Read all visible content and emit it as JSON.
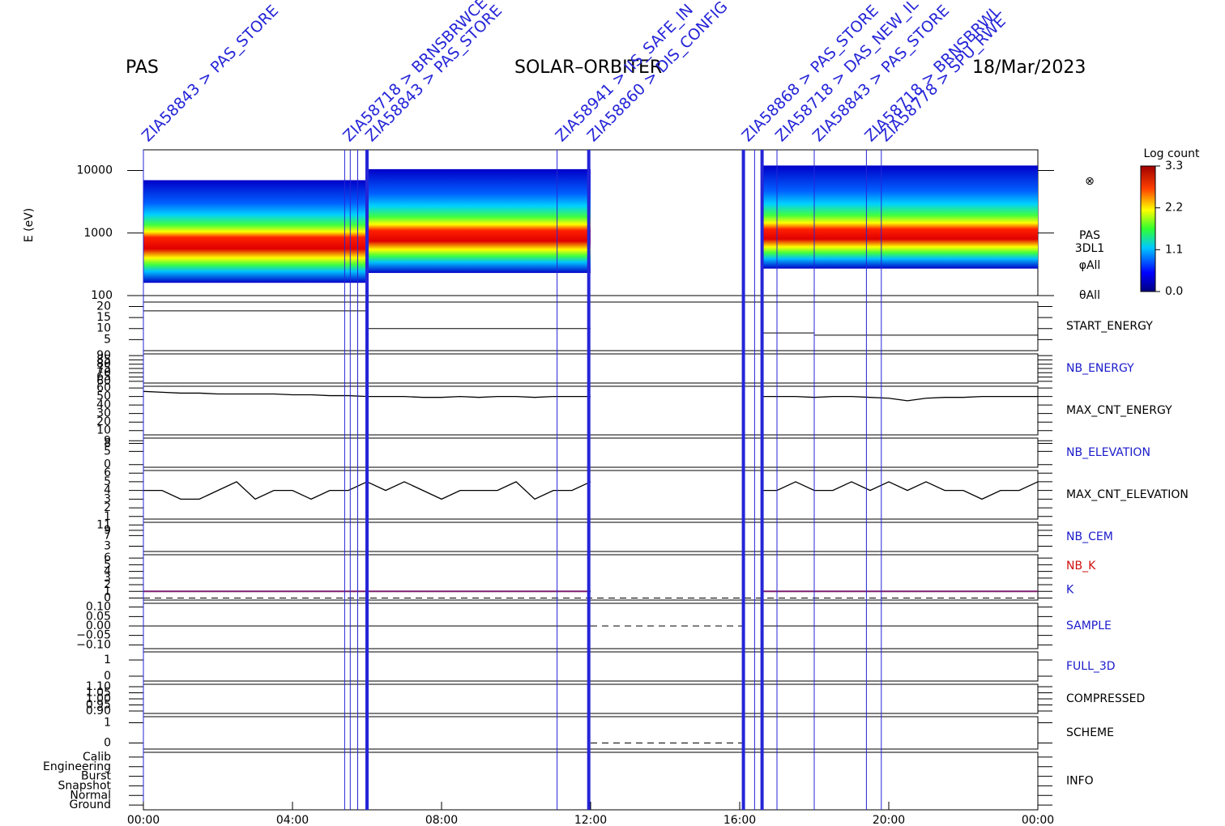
{
  "chart_data": {
    "type": "stacked-panels",
    "title_left": "PAS",
    "title_center": "SOLAR–ORBITER",
    "title_right": "18/Mar/2023",
    "xlim": [
      0,
      24
    ],
    "xticks": [
      {
        "value": 0,
        "label": "00:00"
      },
      {
        "value": 4,
        "label": "04:00"
      },
      {
        "value": 8,
        "label": "08:00"
      },
      {
        "value": 12,
        "label": "12:00"
      },
      {
        "value": 16,
        "label": "16:00"
      },
      {
        "value": 20,
        "label": "20:00"
      },
      {
        "value": 24,
        "label": "00:00"
      }
    ],
    "events": [
      {
        "x": 0.0,
        "label": "ZIA58843 > PAS_STORE",
        "thick": false
      },
      {
        "x": 5.4,
        "label": "ZIA58718 > BRNSBRWCE",
        "thick": false
      },
      {
        "x": 5.55,
        "thick": false
      },
      {
        "x": 5.75,
        "thick": false
      },
      {
        "x": 6.0,
        "label": "ZIA58843 > PAS_STORE",
        "thick": true
      },
      {
        "x": 11.1,
        "label": "ZIA58941 > IIS_SAFE_IN",
        "thick": false
      },
      {
        "x": 11.95,
        "label": "ZIA58860 > DIS_CONFIG",
        "thick": true
      },
      {
        "x": 16.1,
        "label": "ZIA58868 > PAS_STORE",
        "thick": true
      },
      {
        "x": 16.4,
        "thick": false
      },
      {
        "x": 16.6,
        "thick": true
      },
      {
        "x": 17.0,
        "label": "ZIA58718 > DAS_NEW_IL",
        "thick": false
      },
      {
        "x": 18.0,
        "label": "ZIA58843 > PAS_STORE",
        "thick": false
      },
      {
        "x": 19.4,
        "label": "ZIA58718 > BRNSBRWL",
        "thick": false
      },
      {
        "x": 19.8,
        "label": "ZIA58778 > SPU_RWE",
        "thick": false
      }
    ],
    "spectrogram": {
      "ylabel": "E (eV)",
      "log_y": true,
      "ylim": [
        100,
        21400
      ],
      "yticks": [
        100,
        1000,
        10000
      ],
      "segments": [
        {
          "x": [
            0,
            6
          ],
          "emin": 160,
          "emax": 7000,
          "epeak": 850
        },
        {
          "x": [
            6,
            12
          ],
          "emin": 230,
          "emax": 10500,
          "epeak": 1100
        },
        {
          "x": [
            16.6,
            24
          ],
          "emin": 270,
          "emax": 12000,
          "epeak": 1150
        }
      ],
      "right_labels": [
        "⊗",
        "PAS",
        "3DL1",
        "φAll",
        "θAll"
      ]
    },
    "colorbar": {
      "title": "Log count",
      "ylim": [
        0,
        3.3
      ],
      "yticks": [
        {
          "value": 0,
          "label": "0.0"
        },
        {
          "value": 1.1,
          "label": "1.1"
        },
        {
          "value": 2.2,
          "label": "2.2"
        },
        {
          "value": 3.3,
          "label": "3.3"
        }
      ]
    },
    "panels": [
      {
        "label": "START_ENERGY",
        "label_color": "#000000",
        "ylim": [
          0,
          22
        ],
        "yticks": [
          5,
          10,
          15,
          20
        ],
        "steps": [
          {
            "x": [
              0,
              6
            ],
            "value": 18
          },
          {
            "x": [
              6,
              12
            ],
            "value": 10
          },
          {
            "x": [
              16.6,
              18
            ],
            "value": 8
          },
          {
            "x": [
              18,
              24
            ],
            "value": 7
          }
        ]
      },
      {
        "label": "NB_ENERGY",
        "label_color": "#1a1acc",
        "ylim": [
          58,
          92
        ],
        "yticks": [
          60,
          65,
          70,
          75,
          80,
          85,
          90
        ]
      },
      {
        "label": "MAX_CNT_ENERGY",
        "label_color": "#000000",
        "ylim": [
          5,
          62
        ],
        "yticks": [
          10,
          20,
          30,
          40,
          50,
          60
        ],
        "line": {
          "x": [
            0,
            0.5,
            1,
            1.5,
            2,
            2.5,
            3,
            3.5,
            4,
            4.5,
            5,
            5.5,
            6,
            6.5,
            7,
            7.5,
            8,
            8.5,
            9,
            9.5,
            10,
            10.5,
            11,
            11.5,
            12,
            14,
            16.6,
            17,
            17.5,
            18,
            18.5,
            19,
            19.5,
            20,
            20.5,
            21,
            21.5,
            22,
            22.5,
            23,
            23.5,
            24
          ],
          "values": [
            56,
            55,
            54,
            54,
            53,
            53,
            53,
            53,
            52,
            52,
            51,
            51,
            50,
            50,
            50,
            49,
            49,
            50,
            49,
            50,
            50,
            49,
            50,
            50,
            50,
            null,
            50,
            50,
            50,
            49,
            50,
            50,
            49,
            48,
            45,
            48,
            49,
            49,
            50,
            50,
            50,
            50
          ]
        }
      },
      {
        "label": "NB_ELEVATION",
        "label_color": "#1a1acc",
        "ylim": [
          -1,
          10
        ],
        "yticks": [
          0,
          5,
          8,
          9
        ]
      },
      {
        "label": "MAX_CNT_ELEVATION",
        "label_color": "#000000",
        "ylim": [
          0.7,
          6.3
        ],
        "yticks": [
          1,
          2,
          3,
          4,
          5,
          6
        ],
        "line": {
          "x": [
            0,
            0.5,
            1,
            1.5,
            2,
            2.5,
            3,
            3.5,
            4,
            4.5,
            5,
            5.5,
            6,
            6.5,
            7,
            7.5,
            8,
            8.5,
            9,
            9.5,
            10,
            10.5,
            11,
            11.5,
            12,
            14,
            16.6,
            17,
            17.5,
            18,
            18.5,
            19,
            19.5,
            20,
            20.5,
            21,
            21.5,
            22,
            22.5,
            23,
            23.5,
            24
          ],
          "values": [
            4,
            4,
            3,
            3,
            4,
            5,
            3,
            4,
            4,
            3,
            4,
            4,
            5,
            4,
            5,
            4,
            3,
            4,
            4,
            4,
            5,
            3,
            4,
            4,
            5,
            null,
            4,
            4,
            5,
            4,
            4,
            5,
            4,
            5,
            4,
            5,
            4,
            4,
            3,
            4,
            4,
            5
          ]
        }
      },
      {
        "label": "NB_CEM",
        "label_color": "#1a1acc",
        "ylim": [
          1,
          12
        ],
        "yticks": [
          3,
          7,
          9,
          11
        ]
      },
      {
        "label": "NB_K",
        "label_color": "#d01010",
        "ylim": [
          -0.3,
          6.5
        ],
        "yticks": [
          0,
          1,
          2,
          3,
          4,
          5,
          6
        ],
        "steps": [
          {
            "x": [
              0,
              12
            ],
            "value": 1,
            "color": "#7a1f6e"
          },
          {
            "x": [
              16.6,
              24
            ],
            "value": 1,
            "color": "#7a1f6e"
          },
          {
            "x": [
              0,
              24
            ],
            "value": 0,
            "dashed": true
          }
        ],
        "extra_label": "K"
      },
      {
        "label": "SAMPLE",
        "label_color": "#1a1acc",
        "ylim": [
          -0.12,
          0.12
        ],
        "yticks": [
          {
            "value": -0.1,
            "label": "−0.10"
          },
          {
            "value": -0.05,
            "label": "−0.05"
          },
          {
            "value": 0,
            "label": "0.00"
          },
          {
            "value": 0.05,
            "label": "0.05"
          },
          {
            "value": 0.1,
            "label": "0.10"
          }
        ],
        "steps": [
          {
            "x": [
              0,
              12
            ],
            "value": 0
          },
          {
            "x": [
              12,
              16.1
            ],
            "value": 0,
            "dashed": true
          },
          {
            "x": [
              16.6,
              24
            ],
            "value": 0
          }
        ]
      },
      {
        "label": "FULL_3D",
        "label_color": "#1a1acc",
        "ylim": [
          -0.3,
          1.5
        ],
        "yticks": [
          0,
          1
        ]
      },
      {
        "label": "COMPRESSED",
        "label_color": "#000000",
        "ylim": [
          0.88,
          1.12
        ],
        "yticks": [
          {
            "value": 0.9,
            "label": "0.90"
          },
          {
            "value": 0.95,
            "label": "0.95"
          },
          {
            "value": 1.0,
            "label": "1.00"
          },
          {
            "value": 1.05,
            "label": "1.05"
          },
          {
            "value": 1.1,
            "label": "1.10"
          }
        ]
      },
      {
        "label": "SCHEME",
        "label_color": "#000000",
        "ylim": [
          -0.3,
          1.3
        ],
        "yticks": [
          0,
          1
        ],
        "steps": [
          {
            "x": [
              12,
              16.1
            ],
            "value": 0,
            "dashed": true
          }
        ]
      },
      {
        "label": "INFO",
        "label_color": "#000000",
        "ylim": [
          -0.5,
          5.5
        ],
        "yticks": [
          {
            "value": 0,
            "label": "Ground"
          },
          {
            "value": 1,
            "label": "Normal"
          },
          {
            "value": 2,
            "label": "Snapshot"
          },
          {
            "value": 3,
            "label": "Burst"
          },
          {
            "value": 4,
            "label": "Engineering"
          },
          {
            "value": 5,
            "label": "Calib"
          }
        ]
      }
    ]
  }
}
